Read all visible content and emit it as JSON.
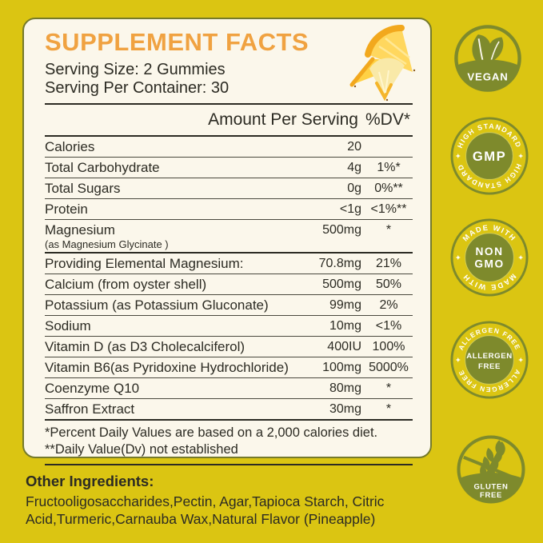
{
  "label": {
    "title": "SUPPLEMENT FACTS",
    "serving_size": "Serving Size: 2 Gummies",
    "serving_per_container": "Serving Per Container: 30",
    "table": {
      "header": {
        "amount": "Amount Per Serving",
        "dv": "%DV*"
      },
      "rows": [
        {
          "name": "Calories",
          "amount": "20",
          "dv": ""
        },
        {
          "name": "Total Carbohydrate",
          "amount": "4g",
          "dv": "1%*"
        },
        {
          "name": "Total Sugars",
          "amount": "0g",
          "dv": "0%**"
        },
        {
          "name": "Protein",
          "amount": "<1g",
          "dv": "<1%**"
        },
        {
          "name": "Magnesium",
          "sub": "(as  Magnesium Glycinate )",
          "amount": "500mg",
          "dv": "*",
          "thick_after": true
        },
        {
          "name": "Providing Elemental Magnesium:",
          "amount": "70.8mg",
          "dv": "21%"
        },
        {
          "name": "Calcium (from oyster shell)",
          "amount": "500mg",
          "dv": "50%"
        },
        {
          "name": "Potassium (as Potassium Gluconate)",
          "amount": "99mg",
          "dv": "2%"
        },
        {
          "name": "Sodium",
          "amount": "10mg",
          "dv": "<1%"
        },
        {
          "name": "Vitamin D (as D3 Cholecalciferol)",
          "amount": "400IU",
          "dv": "100%"
        },
        {
          "name": "Vitamin B6(as Pyridoxine Hydrochloride)",
          "amount": "100mg",
          "dv": "5000%"
        },
        {
          "name": "Coenzyme Q10",
          "amount": "80mg",
          "dv": "*"
        },
        {
          "name": "Saffron Extract",
          "amount": "30mg",
          "dv": "*"
        }
      ],
      "footnotes": [
        "*Percent Daily Values are based on a 2,000 calories diet.",
        "**Daily Value(Dv) not established"
      ]
    }
  },
  "other_ingredients": {
    "heading": "Other Ingredients:",
    "text": "Fructooligosaccharides,Pectin, Agar,Tapioca Starch, Citric Acid,Turmeric,Carnauba Wax,Natural Flavor (Pineapple)"
  },
  "badges": [
    {
      "id": "vegan",
      "label": "VEGAN"
    },
    {
      "id": "gmp",
      "ring_text": "HIGH STANDARD",
      "label": "GMP"
    },
    {
      "id": "non-gmo",
      "ring_text": "MADE WITH",
      "line1": "NON",
      "line2": "GMO"
    },
    {
      "id": "allergen-free",
      "ring_text": "ALLERGEN FREE",
      "line1": "ALLERGEN",
      "line2": "FREE"
    },
    {
      "id": "gluten-free",
      "line1": "GLUTEN",
      "line2": "FREE"
    }
  ],
  "colors": {
    "page_background": "#DBC512",
    "card_background": "#FBF7EB",
    "card_border": "#757A2B",
    "title_orange": "#F0A241",
    "text_dark": "#2C2B23",
    "badge_olive": "#7E8A2C",
    "pineapple_skin": "#F2A81D",
    "pineapple_flesh": "#FFD75E"
  }
}
